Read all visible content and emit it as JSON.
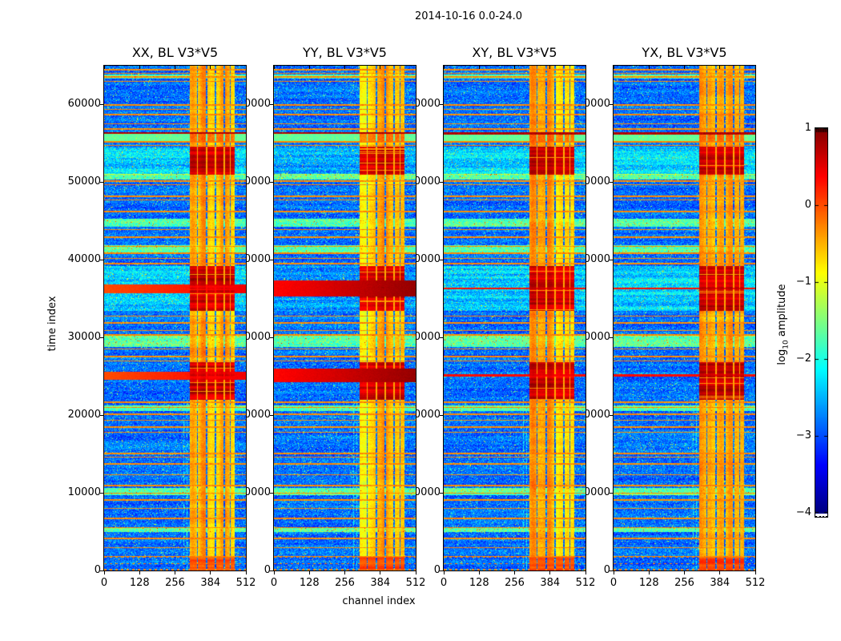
{
  "figure": {
    "title": "2014-10-16 0.0-24.0",
    "xlabel": "channel index",
    "ylabel": "time index"
  },
  "chart_data": {
    "type": "heatmap",
    "title": "2014-10-16 0.0-24.0",
    "xlabel": "channel index",
    "ylabel": "time index",
    "xlim": [
      0,
      512
    ],
    "ylim": [
      0,
      65000
    ],
    "x_ticks": [
      0,
      128,
      256,
      384,
      512
    ],
    "x_tick_labels": [
      "0",
      "128",
      "256",
      "384",
      "512"
    ],
    "y_ticks": [
      0,
      10000,
      20000,
      30000,
      40000,
      50000,
      60000
    ],
    "y_tick_labels": [
      "0",
      "10000",
      "20000",
      "30000",
      "40000",
      "50000",
      "60000"
    ],
    "colorbar": {
      "label_pre": "log",
      "label_sub": "10",
      "label_post": " amplitude",
      "vmin": -4,
      "vmax": 1,
      "ticks": [
        1,
        0,
        -1,
        -2,
        -3,
        -4
      ],
      "tick_labels": [
        "1",
        "0",
        "−1",
        "−2",
        "−3",
        "−4"
      ],
      "colormap": "jet"
    },
    "panels": [
      {
        "title": "XX, BL V3*V5",
        "red_band_style": "medium",
        "seed": 11,
        "left_cyan_scale": 1.0
      },
      {
        "title": "YY, BL V3*V5",
        "red_band_style": "thick",
        "seed": 22,
        "left_cyan_scale": 0.6
      },
      {
        "title": "XY, BL V3*V5",
        "red_band_style": "line",
        "seed": 33,
        "left_cyan_scale": 1.0
      },
      {
        "title": "YX, BL V3*V5",
        "red_band_style": "line",
        "seed": 44,
        "left_cyan_scale": 1.0
      }
    ],
    "features": {
      "rfi_band_channels": [
        308,
        470
      ],
      "band_gap_channels": [
        336,
        368,
        400,
        432,
        454
      ],
      "hot_block_times": [
        [
          51000,
          54600
        ],
        [
          33400,
          39200
        ],
        [
          22000,
          26800
        ],
        [
          0,
          1800
        ]
      ],
      "red_band_times": [
        [
          35300,
          37300
        ],
        [
          24200,
          26000
        ]
      ],
      "green_band_time": [
        55200,
        56400
      ],
      "cyan_band_times": [
        [
          63300,
          63900
        ],
        [
          50300,
          51100
        ],
        [
          44300,
          45300
        ],
        [
          40800,
          41900
        ],
        [
          28800,
          30300
        ],
        [
          20500,
          21300
        ],
        [
          9700,
          10600
        ],
        [
          5000,
          5600
        ]
      ],
      "thin_line_times": [
        64600,
        64100,
        63700,
        63000,
        60000,
        59400,
        58800,
        57600,
        57000,
        54800,
        50200,
        49700,
        48300,
        47800,
        46300,
        44000,
        43000,
        41800,
        41000,
        40200,
        39600,
        32800,
        32000,
        31000,
        30400,
        28600,
        27600,
        27000,
        21800,
        21000,
        20200,
        19400,
        18600,
        17800,
        15200,
        14600,
        13800,
        12400,
        11000,
        10000,
        9200,
        8000,
        6800,
        5600,
        4200,
        3000,
        1900,
        900,
        250
      ],
      "faint_streak_channels": [
        286,
        297
      ]
    }
  }
}
